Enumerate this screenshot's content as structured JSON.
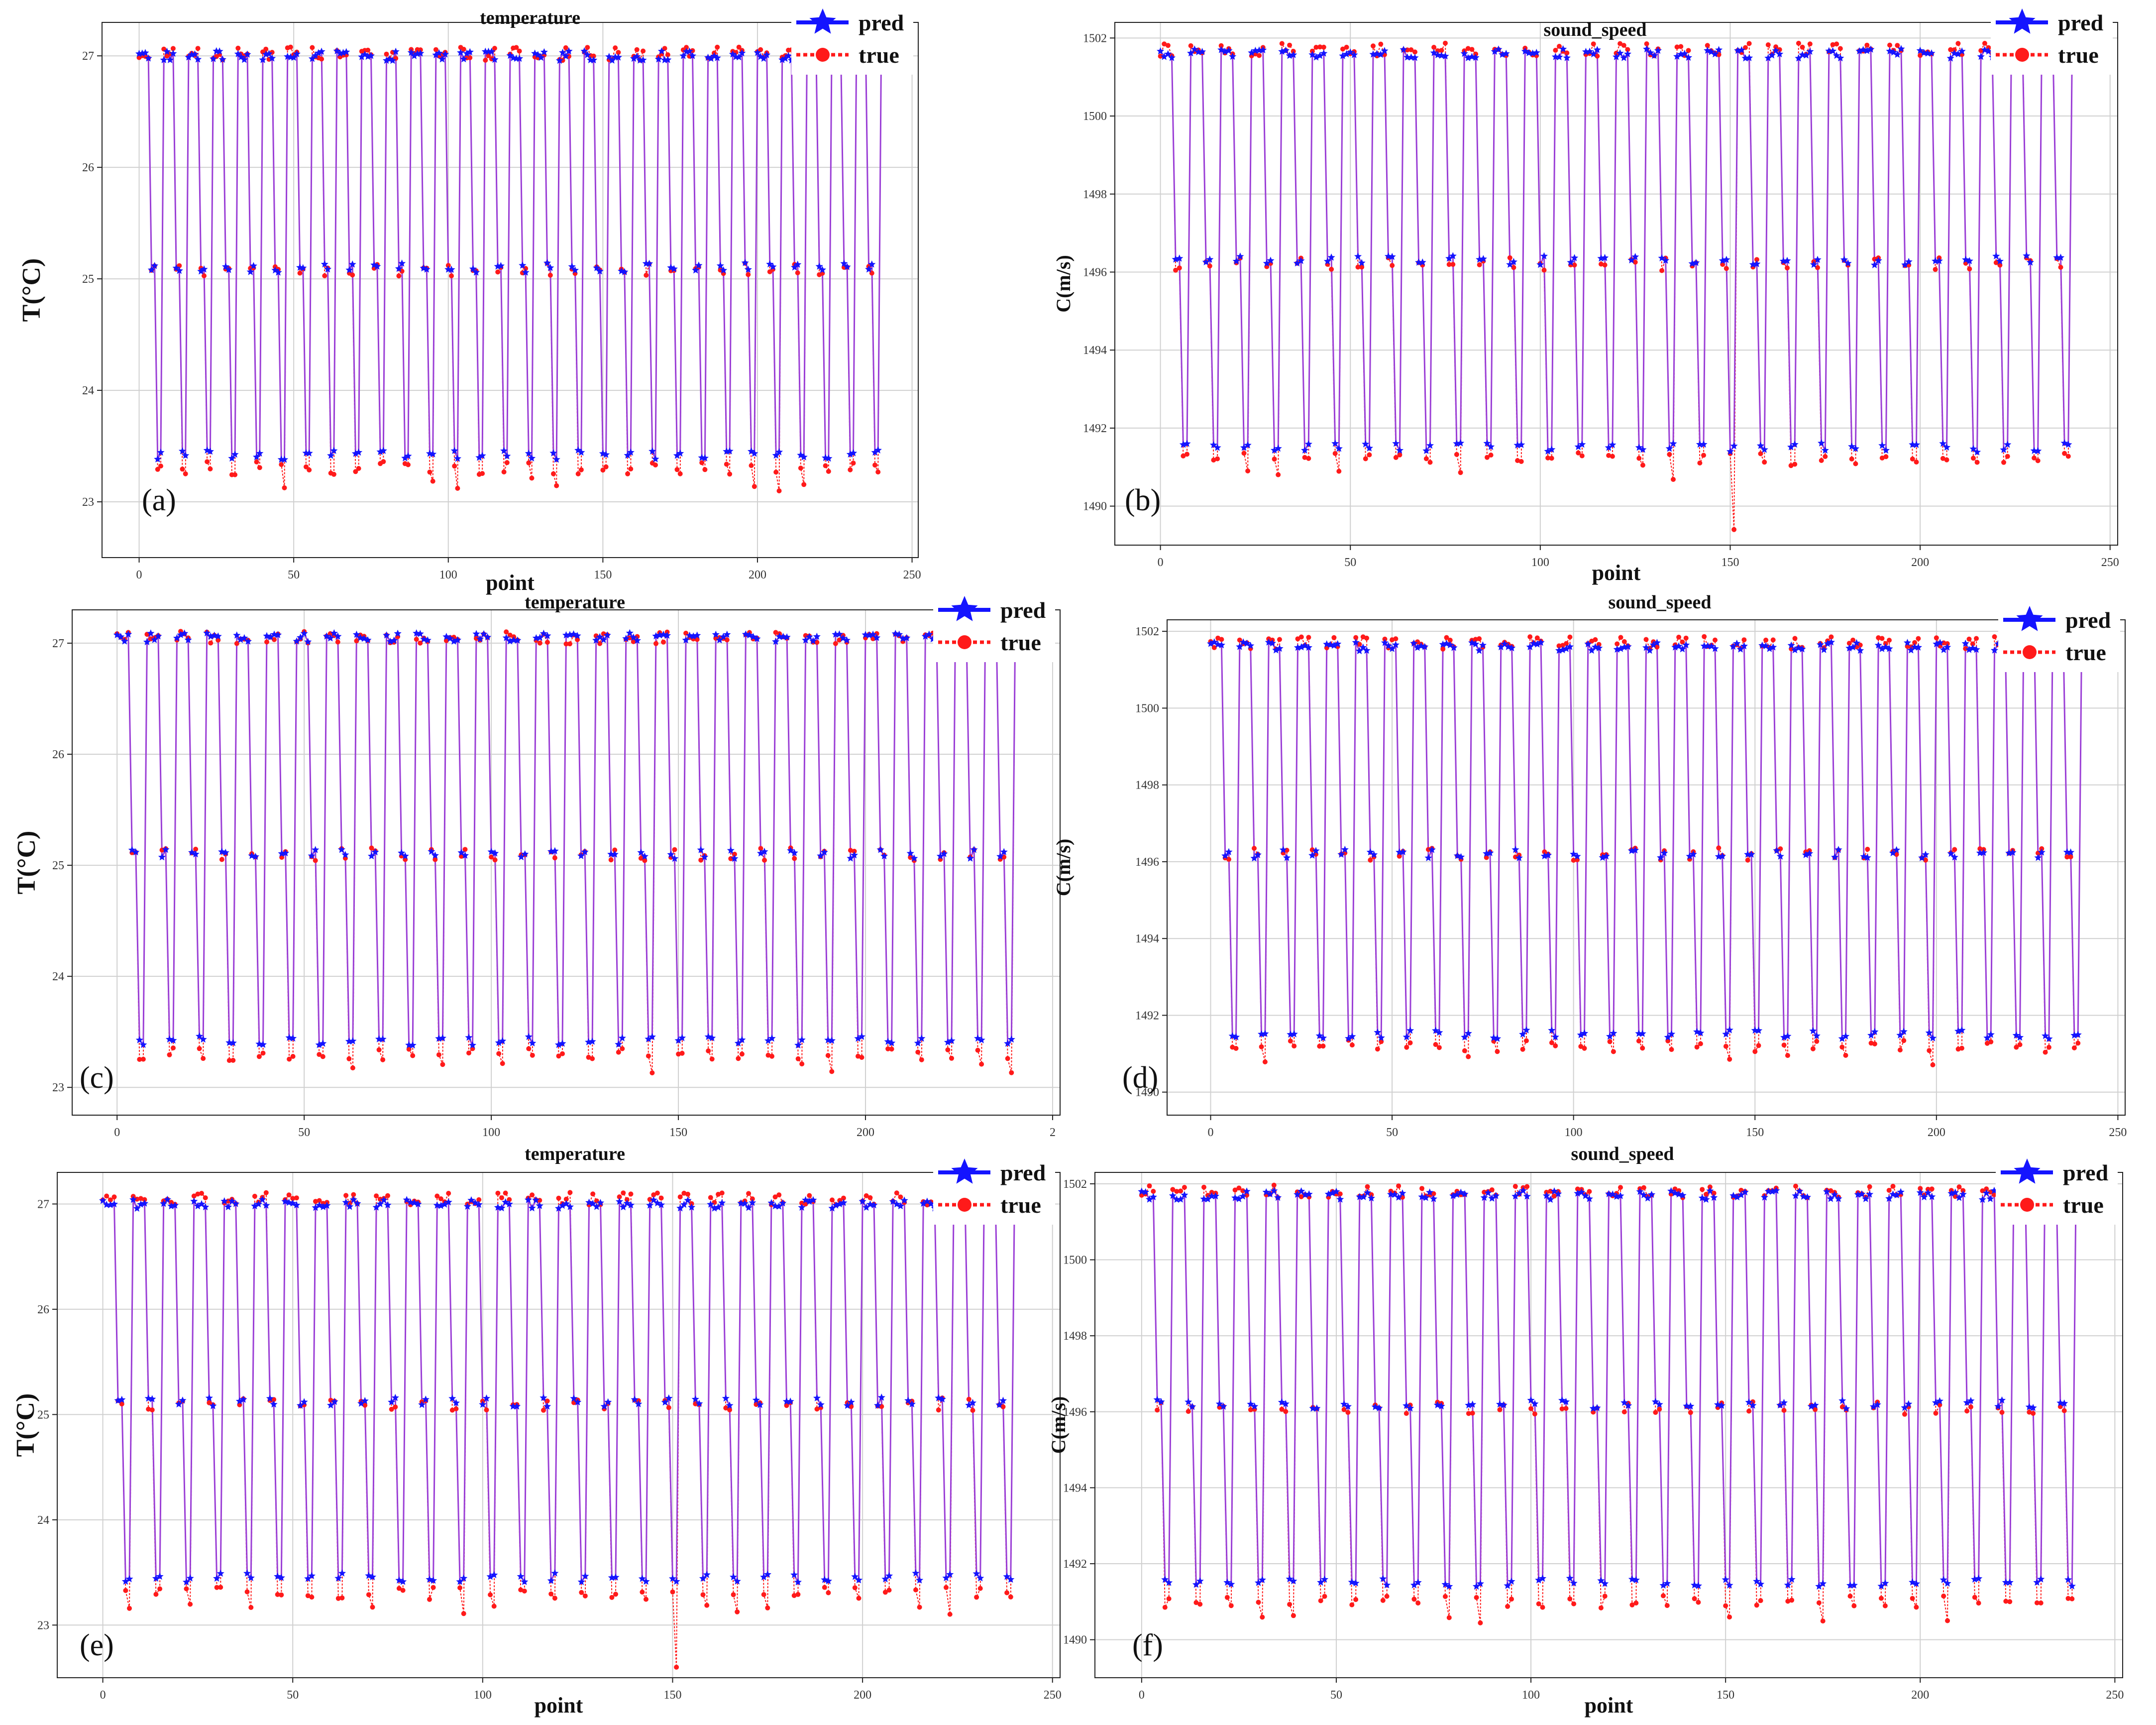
{
  "colors": {
    "pred": "#1414ff",
    "true": "#ff1a1a",
    "overlap": "#9b3fd6"
  },
  "legend": {
    "pred_label": "pred",
    "true_label": "true",
    "pred_icon": "star-marker-icon",
    "true_icon": "dot-marker-icon"
  },
  "chart_data": [
    {
      "panel_label": "(a)",
      "type": "line",
      "title": "temperature",
      "xlabel": "point",
      "ylabel": "T(°C)",
      "xlim": [
        -12,
        252
      ],
      "ylim": [
        22.5,
        27.3
      ],
      "xticks": [
        "0",
        "50",
        "100",
        "150",
        "200",
        "250"
      ],
      "yticks": [
        "23",
        "24",
        "25",
        "26",
        "27"
      ],
      "grid": true,
      "legend_position": "top-right",
      "series": [
        {
          "name": "pred",
          "values": {
            "x_range": [
              0,
              242
            ],
            "period": 8,
            "levels": [
              27.0,
              25.1,
              23.42
            ]
          }
        },
        {
          "name": "true",
          "values": {
            "x_range": [
              0,
              242
            ],
            "period": 8,
            "levels": [
              27.02,
              25.08,
              23.3
            ],
            "dip_minima": [
              22.68,
              22.95,
              23.0
            ]
          }
        }
      ]
    },
    {
      "panel_label": "(b)",
      "type": "line",
      "title": "sound_speed",
      "xlabel": "point",
      "ylabel": "C(m/s)",
      "xlim": [
        -12,
        252
      ],
      "ylim": [
        1489,
        1502.4
      ],
      "xticks": [
        "0",
        "50",
        "100",
        "150",
        "200",
        "250"
      ],
      "yticks": [
        "1490",
        "1492",
        "1494",
        "1496",
        "1498",
        "1500",
        "1502"
      ],
      "grid": true,
      "legend_position": "top-right",
      "series": [
        {
          "name": "pred",
          "values": {
            "x_range": [
              0,
              242
            ],
            "period": 8,
            "levels": [
              1501.6,
              1496.3,
              1491.5
            ]
          }
        },
        {
          "name": "true",
          "values": {
            "x_range": [
              0,
              242
            ],
            "period": 8,
            "levels": [
              1501.7,
              1496.2,
              1491.2
            ],
            "dip_minima": [
              1489.4,
              1489.6,
              1489.9
            ]
          }
        }
      ]
    },
    {
      "panel_label": "(c)",
      "type": "line",
      "title": "temperature",
      "xlabel": "",
      "ylabel": "T(°C)",
      "xlim": [
        -12,
        252
      ],
      "ylim": [
        22.75,
        27.3
      ],
      "xticks": [
        "0",
        "50",
        "100",
        "150",
        "200",
        "2"
      ],
      "yticks": [
        "23",
        "24",
        "25",
        "26",
        "27"
      ],
      "grid": true,
      "legend_position": "top-right",
      "series": [
        {
          "name": "pred",
          "values": {
            "x_range": [
              0,
              242
            ],
            "period": 8,
            "levels": [
              27.05,
              25.1,
              23.42
            ]
          }
        },
        {
          "name": "true",
          "values": {
            "x_range": [
              0,
              242
            ],
            "period": 8,
            "levels": [
              27.05,
              25.1,
              23.3
            ],
            "dip_minima": [
              22.88,
              22.92,
              22.95
            ]
          }
        }
      ]
    },
    {
      "panel_label": "(d)",
      "type": "line",
      "title": "sound_speed",
      "xlabel": "",
      "ylabel": "C(m/s)",
      "xlim": [
        -12,
        252
      ],
      "ylim": [
        1489.4,
        1502.3
      ],
      "xticks": [
        "0",
        "50",
        "100",
        "150",
        "200",
        "250"
      ],
      "yticks": [
        "1490",
        "1492",
        "1494",
        "1496",
        "1498",
        "1500",
        "1502"
      ],
      "grid": true,
      "legend_position": "top-right",
      "series": [
        {
          "name": "pred",
          "values": {
            "x_range": [
              0,
              242
            ],
            "period": 8,
            "levels": [
              1501.6,
              1496.2,
              1491.5
            ]
          }
        },
        {
          "name": "true",
          "values": {
            "x_range": [
              0,
              242
            ],
            "period": 8,
            "levels": [
              1501.7,
              1496.2,
              1491.2
            ],
            "dip_minima": [
              1489.7,
              1490.0,
              1490.1
            ]
          }
        }
      ]
    },
    {
      "panel_label": "(e)",
      "type": "line",
      "title": "temperature",
      "xlabel": "point",
      "ylabel": "T(°C)",
      "xlim": [
        -12,
        252
      ],
      "ylim": [
        22.5,
        27.3
      ],
      "xticks": [
        "0",
        "50",
        "100",
        "150",
        "200",
        "250"
      ],
      "yticks": [
        "23",
        "24",
        "25",
        "26",
        "27"
      ],
      "grid": true,
      "legend_position": "top-right",
      "series": [
        {
          "name": "pred",
          "values": {
            "x_range": [
              0,
              242
            ],
            "period": 8,
            "levels": [
              27.0,
              25.12,
              23.45
            ]
          }
        },
        {
          "name": "true",
          "values": {
            "x_range": [
              0,
              242
            ],
            "period": 8,
            "levels": [
              27.05,
              25.1,
              23.3
            ],
            "dip_minima": [
              22.6,
              22.95,
              23.0
            ]
          }
        }
      ]
    },
    {
      "panel_label": "(f)",
      "type": "line",
      "title": "sound_speed",
      "xlabel": "point",
      "ylabel": "C(m/s)",
      "xlim": [
        -12,
        252
      ],
      "ylim": [
        1489,
        1502.3
      ],
      "xticks": [
        "0",
        "50",
        "100",
        "150",
        "200",
        "250"
      ],
      "yticks": [
        "1490",
        "1492",
        "1494",
        "1496",
        "1498",
        "1500",
        "1502"
      ],
      "grid": true,
      "legend_position": "top-right",
      "series": [
        {
          "name": "pred",
          "values": {
            "x_range": [
              0,
              242
            ],
            "period": 8,
            "levels": [
              1501.7,
              1496.2,
              1491.5
            ]
          }
        },
        {
          "name": "true",
          "values": {
            "x_range": [
              0,
              242
            ],
            "period": 8,
            "levels": [
              1501.8,
              1496.1,
              1491.0
            ],
            "dip_minima": [
              1489.4,
              1490.1,
              1490.2
            ]
          }
        }
      ]
    }
  ]
}
